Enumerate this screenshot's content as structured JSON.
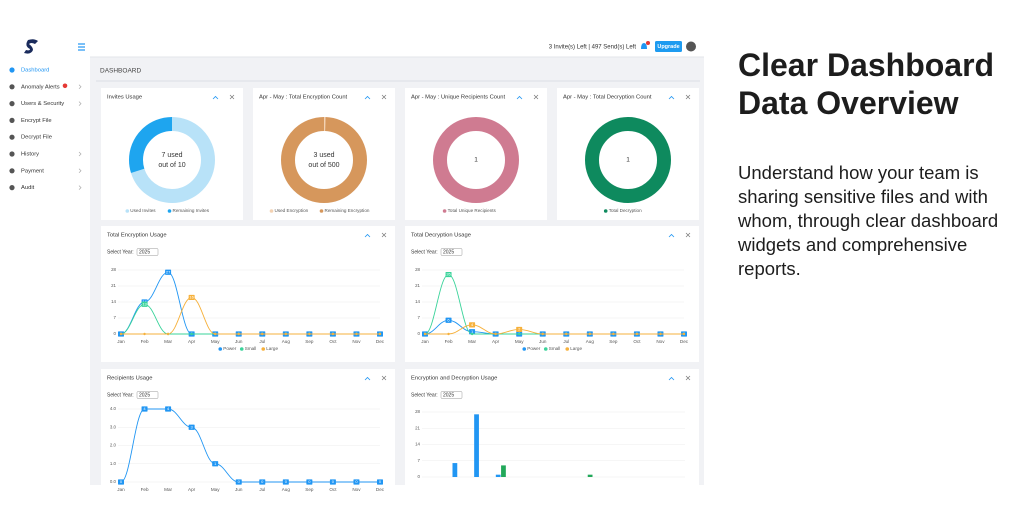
{
  "sidebar": {
    "nav": [
      "Dashboard",
      "Anomaly Alerts",
      "Users & Security",
      "Encrypt File",
      "Decrypt File",
      "History",
      "Payment",
      "Audit"
    ]
  },
  "header": {
    "status": "3 Invite(s) Left | 497 Send(s) Left",
    "upgrade": "Upgrade"
  },
  "page_title": "DASHBOARD",
  "donuts": [
    {
      "title": "Invites Usage",
      "center": [
        "7 used",
        "out of 10"
      ],
      "segments": [
        {
          "name": "Used Invites",
          "color": "#b8e2f8",
          "value": 7
        },
        {
          "name": "Remaining Invites",
          "color": "#1ea5ef",
          "value": 3
        }
      ]
    },
    {
      "title": "Apr - May : Total Encryption Count",
      "center": [
        "3 used",
        "out of 500"
      ],
      "segments": [
        {
          "name": "Used Encryption",
          "color": "#f3d2b3",
          "value": 3
        },
        {
          "name": "Remaining Encryption",
          "color": "#d6975c",
          "value": 497
        }
      ]
    },
    {
      "title": "Apr - May : Unique Recipients Count",
      "segments": [
        {
          "name": "Total Unique Recipients",
          "color": "#cf7b91",
          "value": 1
        }
      ]
    },
    {
      "title": "Apr - May : Total Decryption Count",
      "segments": [
        {
          "name": "Total Decryption",
          "color": "#0e8a5e",
          "value": 1
        }
      ]
    }
  ],
  "charts": [
    {
      "type": "line",
      "title": "Total Encryption Usage",
      "select_label": "Select Year:",
      "year": "2025",
      "categories": [
        "Jan",
        "Feb",
        "Mar",
        "Apr",
        "May",
        "Jun",
        "Jul",
        "Aug",
        "Sep",
        "Oct",
        "Nov",
        "Dec"
      ],
      "ylim": [
        0,
        28
      ],
      "yticks": [
        0,
        7,
        14,
        21,
        28
      ],
      "series": [
        {
          "name": "Power",
          "color": "#2196f3",
          "values": [
            0,
            14,
            27,
            0,
            0,
            0,
            0,
            0,
            0,
            0,
            0,
            0
          ]
        },
        {
          "name": "Small",
          "color": "#3ad39a",
          "values": [
            0,
            13,
            0,
            0,
            0,
            0,
            0,
            0,
            0,
            0,
            0,
            0
          ]
        },
        {
          "name": "Large",
          "color": "#f6b13c",
          "values": [
            0,
            0,
            0,
            16,
            0,
            0,
            0,
            0,
            0,
            0,
            0,
            0
          ]
        }
      ]
    },
    {
      "type": "line",
      "title": "Total Decryption Usage",
      "select_label": "Select Year:",
      "year": "2025",
      "categories": [
        "Jan",
        "Feb",
        "Mar",
        "Apr",
        "May",
        "Jun",
        "Jul",
        "Aug",
        "Sep",
        "Oct",
        "Nov",
        "Dec"
      ],
      "ylim": [
        0,
        28
      ],
      "yticks": [
        0,
        7,
        14,
        21,
        28
      ],
      "series": [
        {
          "name": "Power",
          "color": "#2196f3",
          "values": [
            0,
            6,
            1,
            0,
            0,
            0,
            0,
            0,
            0,
            0,
            0,
            0
          ]
        },
        {
          "name": "Small",
          "color": "#3ad39a",
          "values": [
            0,
            26,
            0,
            0,
            0,
            0,
            0,
            0,
            0,
            0,
            0,
            0
          ]
        },
        {
          "name": "Large",
          "color": "#f6b13c",
          "values": [
            0,
            0,
            4,
            0,
            2,
            0,
            0,
            0,
            0,
            0,
            0,
            0
          ]
        }
      ]
    },
    {
      "type": "line",
      "title": "Recipients Usage",
      "select_label": "Select Year:",
      "year": "2025",
      "categories": [
        "Jan",
        "Feb",
        "Mar",
        "Apr",
        "May",
        "Jun",
        "Jul",
        "Aug",
        "Sep",
        "Oct",
        "Nov",
        "Dec"
      ],
      "ylim": [
        0,
        4
      ],
      "yticks": [
        {
          "value": 0,
          "label": "0.0"
        },
        {
          "value": 1,
          "label": "1.0"
        },
        {
          "value": 2,
          "label": "2.0"
        },
        {
          "value": 3,
          "label": "3.0"
        },
        {
          "value": 4,
          "label": "4.0"
        }
      ],
      "series": [
        {
          "color": "#2196f3",
          "values": [
            0,
            4,
            4,
            3,
            1,
            0,
            0,
            0,
            0,
            0,
            0,
            0
          ]
        }
      ]
    },
    {
      "type": "bar",
      "title": "Encryption and Decryption Usage",
      "select_label": "Select Year:",
      "year": "2025",
      "ylim": [
        0,
        28
      ],
      "yticks": [
        0,
        7,
        14,
        21,
        28
      ],
      "series": [
        {
          "color": "#2196f3",
          "values": [
            0,
            6,
            27,
            1,
            0,
            0,
            0,
            0,
            0,
            0,
            0,
            0
          ]
        },
        {
          "color": "#22a85a",
          "values": [
            0,
            0,
            0,
            5,
            0,
            0,
            0,
            1,
            0,
            0,
            0,
            0
          ]
        }
      ]
    }
  ],
  "promo": {
    "title": "Clear Dashboard Data Overview",
    "text": "Understand how your team is sharing sensitive files and with whom, through clear dashboard widgets and comprehensive reports."
  }
}
